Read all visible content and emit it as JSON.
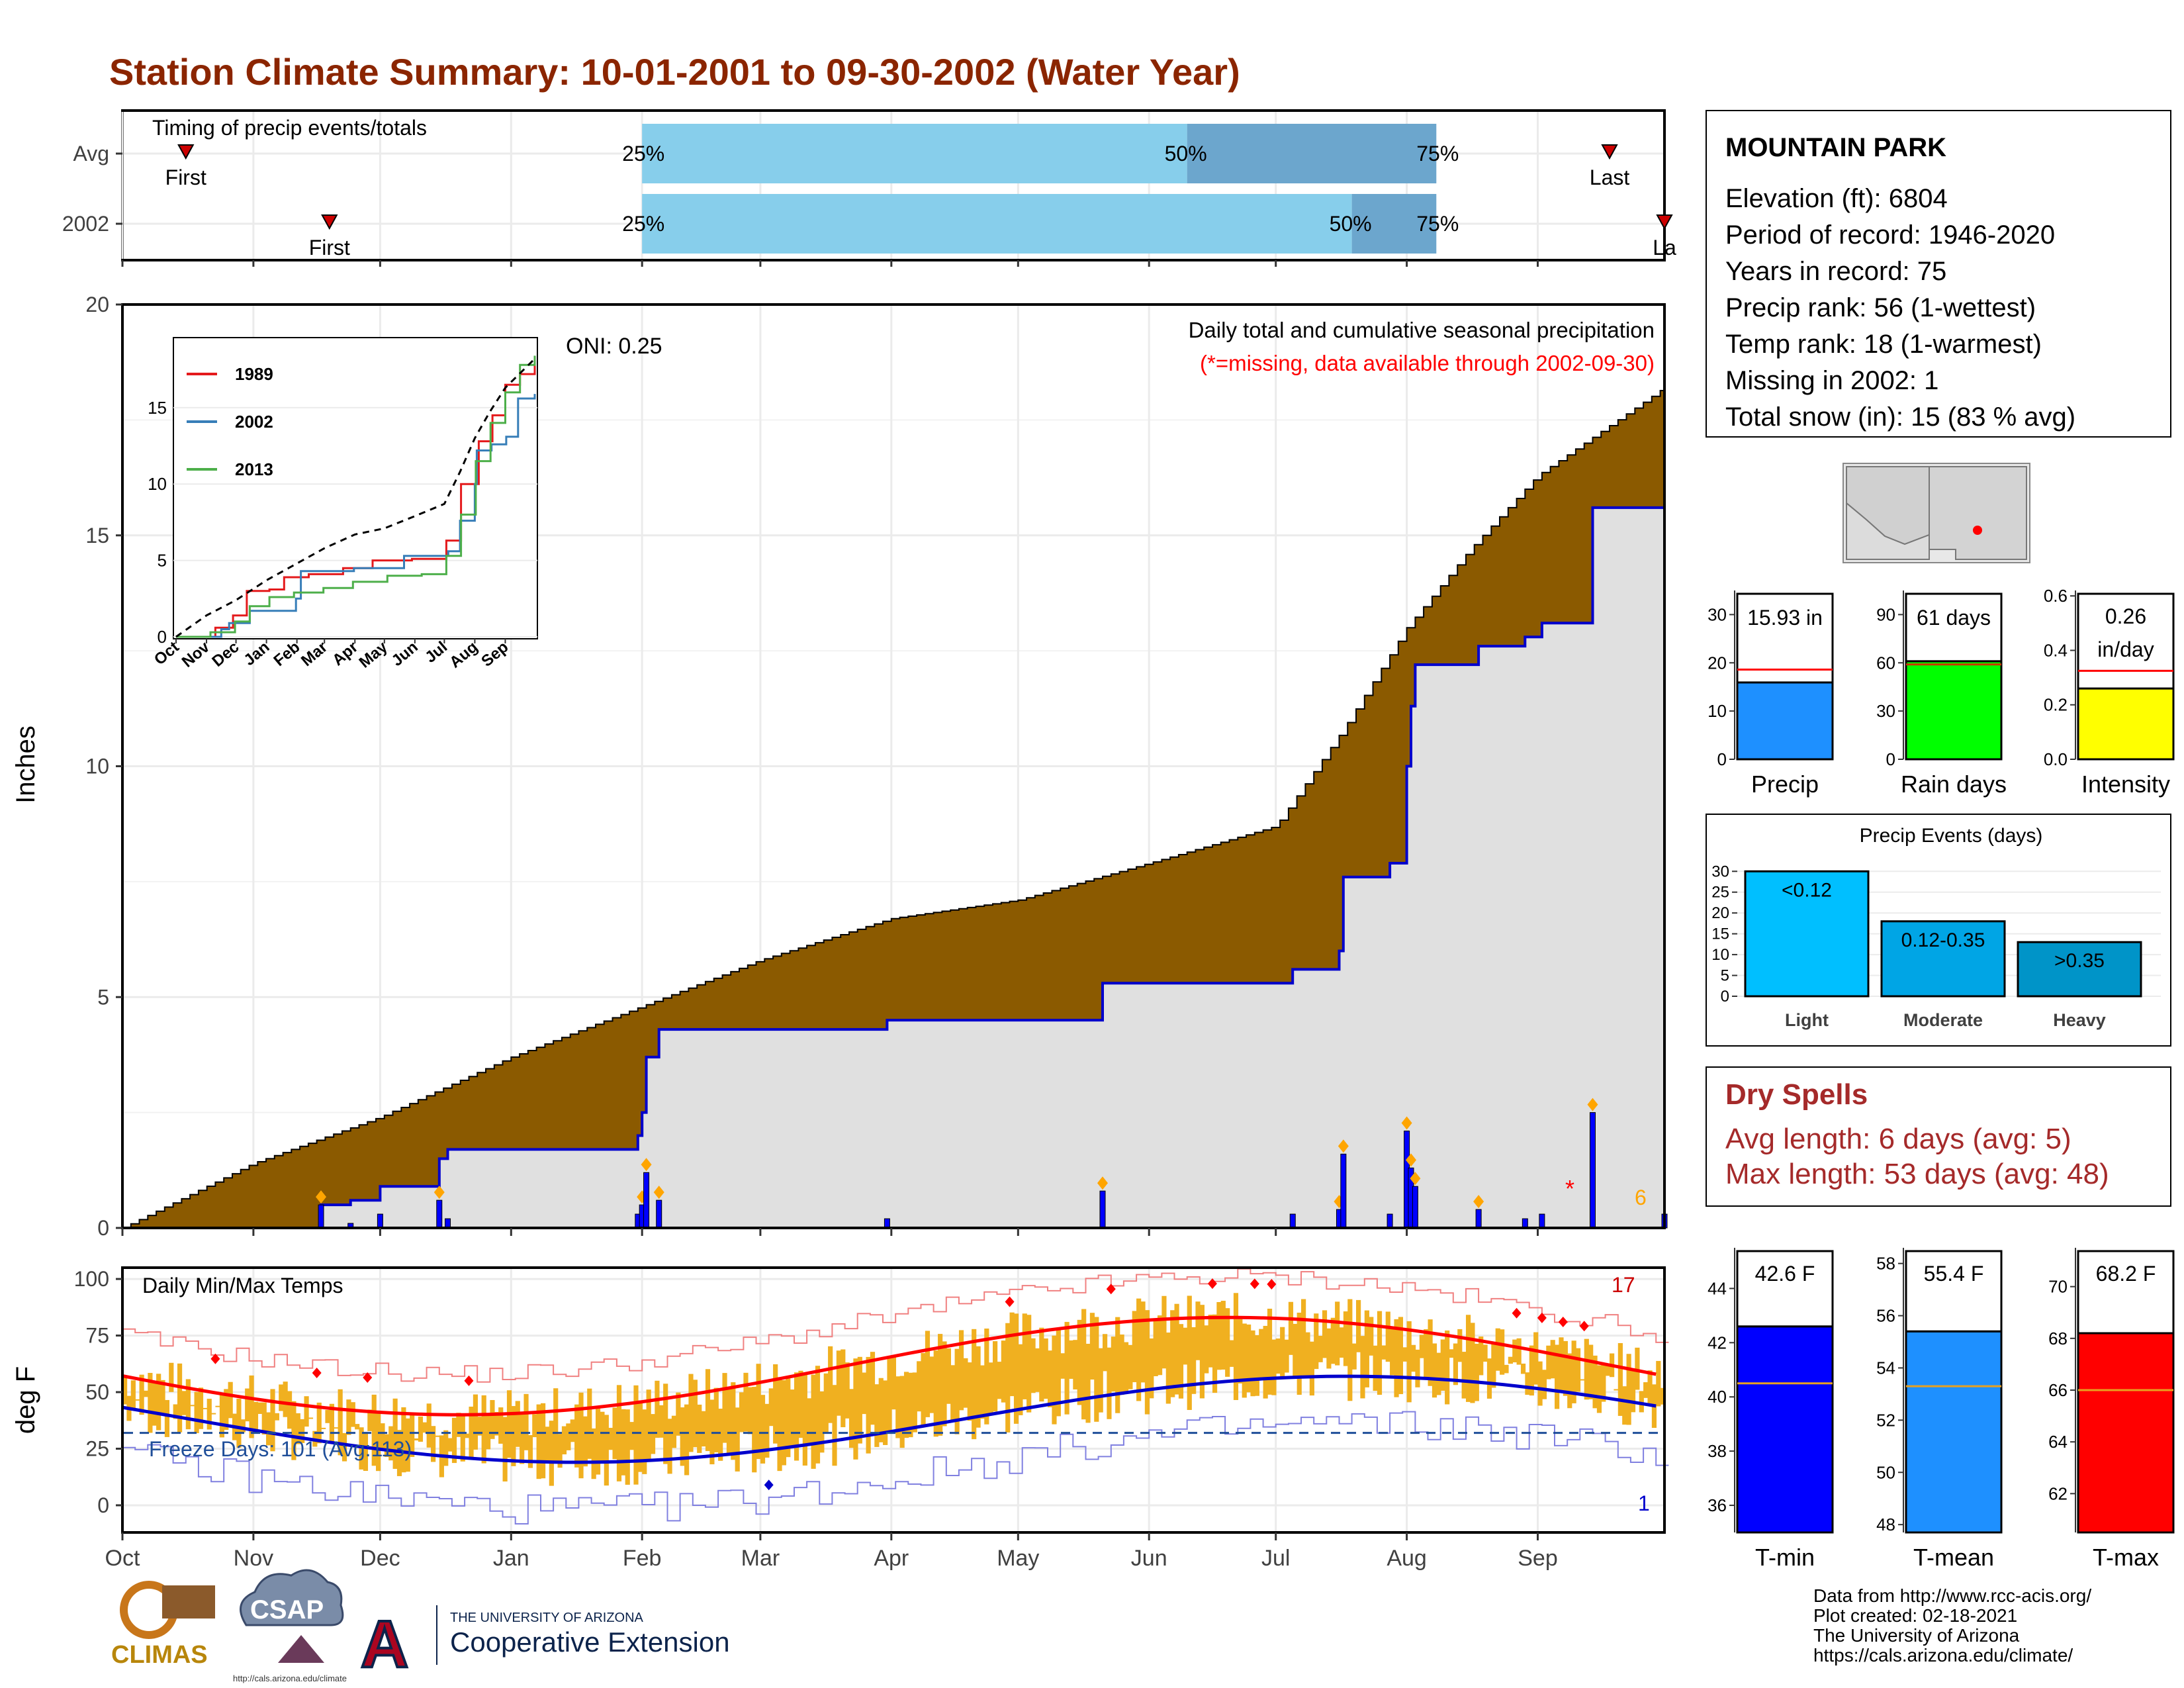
{
  "title": "Station Climate Summary: 10-01-2001 to 09-30-2002 (Water Year)",
  "months": [
    "Oct",
    "Nov",
    "Dec",
    "Jan",
    "Feb",
    "Mar",
    "Apr",
    "May",
    "Jun",
    "Jul",
    "Aug",
    "Sep"
  ],
  "timing": {
    "title": "Timing of precip events/totals",
    "rows": [
      {
        "label": "Avg",
        "first_label": "First",
        "last_label": "Last",
        "first_day": 15,
        "last_day": 352,
        "q25_day": 123,
        "q50_day": 252,
        "q75_day": 311,
        "q25_text": "25%",
        "q50_text": "50%",
        "q75_text": "75%"
      },
      {
        "label": "2002",
        "first_label": "First",
        "last_label": "La",
        "first_day": 49,
        "last_day": 365,
        "q25_day": 123,
        "q50_day": 291,
        "q75_day": 311,
        "q25_text": "25%",
        "q50_text": "50%",
        "q75_text": "75%"
      }
    ],
    "colors": {
      "light": "#87CEEB",
      "dark": "#6CA6CD",
      "marker": "#CC0000"
    }
  },
  "precip_panel": {
    "ylabel": "Inches",
    "yticks": [
      "0",
      "5",
      "10",
      "15",
      "20"
    ],
    "annotation_oni": "ONI: 0.25",
    "annotation_title": "Daily total and cumulative seasonal precipitation",
    "annotation_missing": "(*=missing, data available through 2002-09-30)",
    "corner_count": "6",
    "missing_mark": "*",
    "colors": {
      "avg_fill": "#8B5A00",
      "obs_fill": "#E0E0E0",
      "obs_line": "#0000CC",
      "daily_bar": "#0000FF",
      "event_marker": "#FFA500",
      "missing": "#FF0000"
    }
  },
  "inset": {
    "yticks": [
      "0",
      "5",
      "10",
      "15"
    ],
    "xticks": [
      "Oct",
      "Nov",
      "Dec",
      "Jan",
      "Feb",
      "Mar",
      "Apr",
      "May",
      "Jun",
      "Jul",
      "Aug",
      "Sep"
    ],
    "legend": [
      {
        "name": "1989",
        "color": "#E41A1C"
      },
      {
        "name": "2002",
        "color": "#377EB8"
      },
      {
        "name": "2013",
        "color": "#4DAF4A"
      }
    ]
  },
  "temp_panel": {
    "ylabel": "deg F",
    "yticks": [
      "0",
      "25",
      "50",
      "75",
      "100"
    ],
    "title": "Daily Min/Max Temps",
    "freeze_text": "Freeze Days: 101 (Avg:113)",
    "count_high": "17",
    "count_low": "1",
    "colors": {
      "bar": "#F0B020",
      "avg_max": "#FF0000",
      "avg_min": "#0000CC",
      "rec_max": "#F08080",
      "rec_min": "#8080E0",
      "freeze_line": "#1F4E99"
    }
  },
  "station": {
    "name": "MOUNTAIN PARK",
    "lines": [
      "Elevation (ft): 6804",
      "Period of record: 1946-2020",
      "Years in record: 75",
      "Precip rank: 56 (1-wettest)",
      "Temp rank: 18 (1-warmest)",
      "Missing in 2002: 1",
      "Total snow (in): 15 (83 % avg)"
    ]
  },
  "mini_bars": [
    {
      "label": "Precip",
      "value_text": "15.93 in",
      "yticks": [
        "0",
        "10",
        "20",
        "30"
      ],
      "value": 15.93,
      "avg": 18.6,
      "ymax": 35,
      "color": "#1E90FF",
      "avg_color": "#FF0000"
    },
    {
      "label": "Rain days",
      "value_text": "61 days",
      "yticks": [
        "0",
        "30",
        "60",
        "90"
      ],
      "value": 61,
      "avg": 59,
      "ymax": 105,
      "color": "#00FF00",
      "avg_color": "#CC3300"
    },
    {
      "label": "Intensity",
      "value_text": "0.26 in/day",
      "value_line1": "0.26",
      "value_line2": "in/day",
      "yticks": [
        "0.0",
        "0.2",
        "0.4",
        "0.6"
      ],
      "value": 0.26,
      "avg": 0.325,
      "ymax": 0.62,
      "color": "#FFFF00",
      "avg_color": "#FF0000"
    }
  ],
  "precip_events": {
    "title": "Precip Events (days)",
    "yticks": [
      "0",
      "5",
      "10",
      "15",
      "20",
      "25",
      "30"
    ],
    "categories": [
      "Light",
      "Moderate",
      "Heavy"
    ],
    "bar_labels": [
      "<0.12",
      "0.12-0.35",
      ">0.35"
    ],
    "values": [
      30,
      18,
      13
    ],
    "colors": [
      "#00BFFF",
      "#00A5E5",
      "#0094C8"
    ]
  },
  "dry_spells": {
    "title": "Dry Spells",
    "avg_line": "Avg length: 6 days (avg: 5)",
    "max_line": "Max length: 53 days (avg: 48)",
    "color": "#A52A2A"
  },
  "temp_bars": [
    {
      "label": "T-min",
      "value_text": "42.6 F",
      "yticks": [
        "36",
        "38",
        "40",
        "42",
        "44"
      ],
      "ymin": 35,
      "ymax": 45.5,
      "value": 42.6,
      "avg": 40.5,
      "color": "#0000FF"
    },
    {
      "label": "T-mean",
      "value_text": "55.4 F",
      "yticks": [
        "48",
        "50",
        "52",
        "54",
        "56",
        "58"
      ],
      "ymin": 47.7,
      "ymax": 58.6,
      "value": 55.4,
      "avg": 53.3,
      "color": "#1E90FF"
    },
    {
      "label": "T-max",
      "value_text": "68.2 F",
      "yticks": [
        "62",
        "64",
        "66",
        "68",
        "70"
      ],
      "ymin": 60.5,
      "ymax": 71.5,
      "value": 68.2,
      "avg": 66.0,
      "color": "#FF0000"
    }
  ],
  "footer": {
    "lines": [
      "Data from http://www.rcc-acis.org/",
      "Plot created: 02-18-2021",
      "The University of Arizona",
      "https://cals.arizona.edu/climate/"
    ],
    "logos": {
      "climas": "CLIMAS",
      "csap": "CSAP",
      "csap_url": "http://cals.arizona.edu/climate",
      "ua_top": "THE UNIVERSITY OF ARIZONA",
      "ua_main": "Cooperative Extension",
      "ua_letter": "A"
    }
  },
  "chart_data": {
    "type": "area",
    "title": "Daily total and cumulative seasonal precipitation",
    "ylabel": "Inches",
    "ylim": [
      0,
      20
    ],
    "x_unit": "day of water year (Oct 1 = 0)",
    "series": [
      {
        "name": "avg",
        "x": [
          0,
          31,
          61,
          92,
          123,
          151,
          182,
          212,
          243,
          273,
          289,
          304,
          319,
          335,
          365
        ],
        "y": [
          0,
          1.4,
          2.4,
          3.7,
          4.8,
          5.8,
          6.7,
          7.1,
          7.9,
          8.7,
          10.8,
          13.0,
          14.7,
          16.3,
          18.2
        ]
      },
      {
        "name": "2002",
        "x": [
          0,
          46,
          47,
          54,
          61,
          75,
          77,
          92,
          122,
          123,
          124,
          127,
          181,
          232,
          277,
          288,
          289,
          300,
          304,
          305,
          306,
          321,
          332,
          336,
          348,
          365
        ],
        "y": [
          0,
          0,
          0.5,
          0.6,
          0.9,
          1.5,
          1.7,
          1.7,
          2.0,
          2.5,
          3.7,
          4.3,
          4.5,
          5.3,
          5.6,
          6.0,
          7.6,
          7.9,
          10.0,
          11.3,
          12.2,
          12.6,
          12.8,
          13.1,
          15.6,
          15.9
        ]
      }
    ]
  }
}
